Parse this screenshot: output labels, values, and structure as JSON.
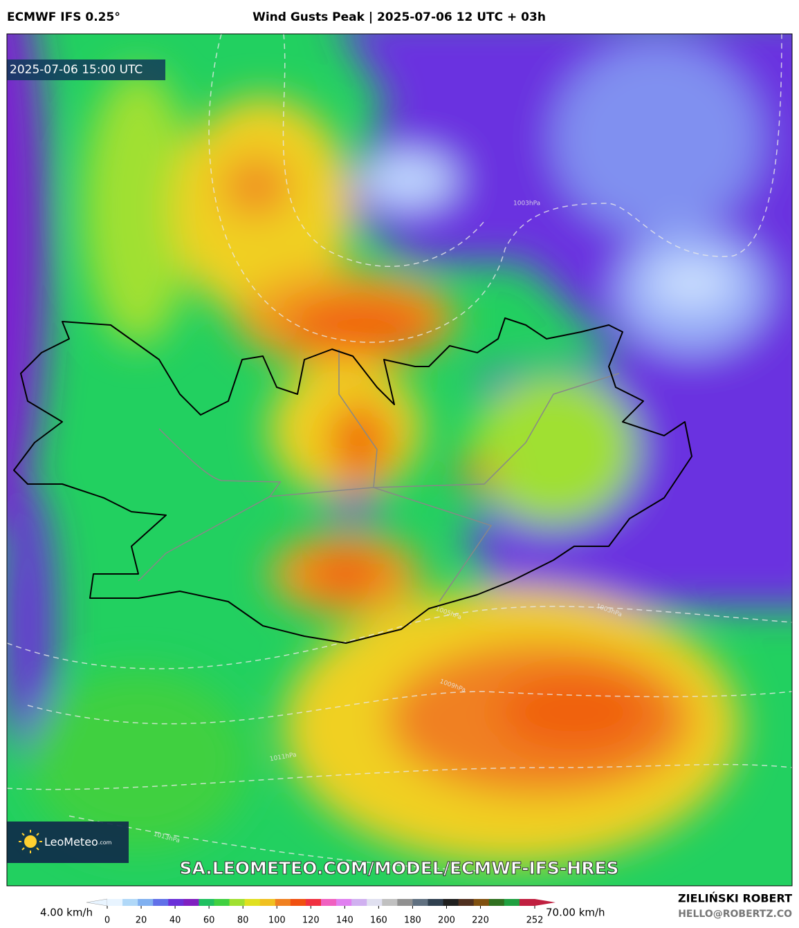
{
  "header": {
    "model": "ECMWF IFS 0.25°",
    "title": "Wind Gusts Peak | 2025-07-06 12 UTC + 03h"
  },
  "map": {
    "timestamp": "2025-07-06 15:00 UTC",
    "isobar_labels": [
      "1003hPa",
      "1003hPa",
      "1005hPa",
      "1009hPa",
      "1011hPa",
      "1013hPa"
    ]
  },
  "logo": {
    "name": "LeoMeteo",
    "suffix": ".com"
  },
  "url": "SA.LEOMETEO.COM/MODEL/ECMWF-IFS-HRES",
  "footer": {
    "author": "ZIELIŃSKI ROBERT",
    "email": "HELLO@ROBERTZ.CO"
  },
  "colorbar": {
    "min_label": "4.00 km/h",
    "max_label": "70.00 km/h",
    "range": [
      0,
      252
    ],
    "ticks": [
      0,
      20,
      40,
      60,
      80,
      100,
      120,
      140,
      160,
      180,
      200,
      220,
      252
    ],
    "colors": [
      "#e8f4ff",
      "#b0d8f8",
      "#80b0f0",
      "#6070e8",
      "#6a30d8",
      "#8020c0",
      "#20c060",
      "#40d040",
      "#a0e030",
      "#e0e020",
      "#f0c020",
      "#f08020",
      "#f05010",
      "#f03040",
      "#f060c0",
      "#e080f0",
      "#d0b0f0",
      "#e0e0f0",
      "#c0c0c0",
      "#909090",
      "#607080",
      "#304050",
      "#202020",
      "#503020",
      "#805010",
      "#307020",
      "#20a040",
      "#c02040"
    ]
  }
}
